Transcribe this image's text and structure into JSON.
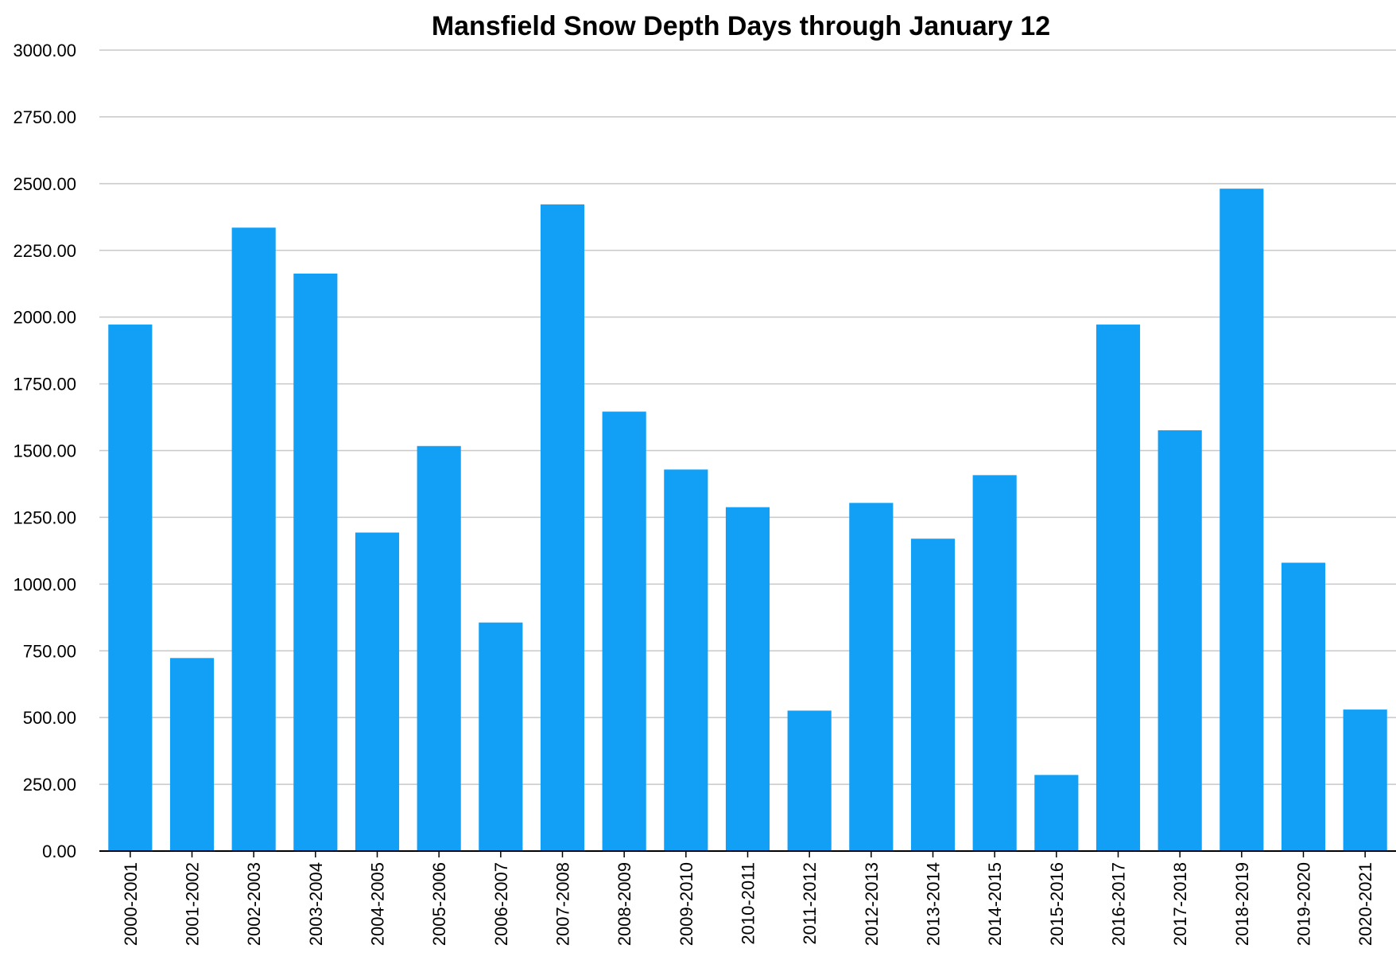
{
  "chart_data": {
    "type": "bar",
    "title": "Mansfield Snow Depth Days through January 12",
    "xlabel": "",
    "ylabel": "",
    "ylim": [
      0,
      3000
    ],
    "yticks": [
      "0.00",
      "250.00",
      "500.00",
      "750.00",
      "1000.00",
      "1250.00",
      "1500.00",
      "1750.00",
      "2000.00",
      "2250.00",
      "2500.00",
      "2750.00",
      "3000.00"
    ],
    "grid": true,
    "legend": "none",
    "bar_color": "#12a0f7",
    "categories": [
      "2000-2001",
      "2001-2002",
      "2002-2003",
      "2003-2004",
      "2004-2005",
      "2005-2006",
      "2006-2007",
      "2007-2008",
      "2008-2009",
      "2009-2010",
      "2010-2011",
      "2011-2012",
      "2012-2013",
      "2013-2014",
      "2014-2015",
      "2015-2016",
      "2016-2017",
      "2017-2018",
      "2018-2019",
      "2019-2020",
      "2020-2021"
    ],
    "values": [
      1972,
      723,
      2335,
      2163,
      1193,
      1517,
      856,
      2422,
      1646,
      1429,
      1288,
      526,
      1304,
      1170,
      1408,
      285,
      1972,
      1576,
      2481,
      1080,
      530
    ]
  }
}
